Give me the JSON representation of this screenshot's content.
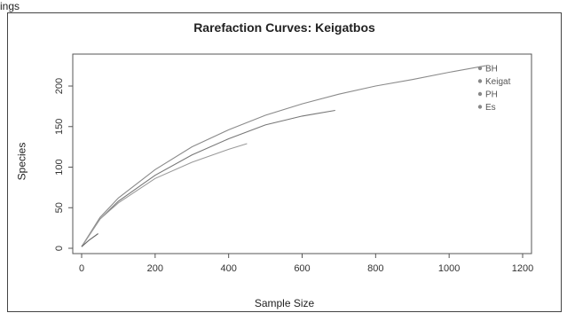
{
  "header_text": "ings",
  "chart_data": {
    "type": "line",
    "title": "Rarefaction Curves: Keigatbos",
    "xlabel": "Sample Size",
    "ylabel": "Species",
    "xlim": [
      0,
      1200
    ],
    "ylim": [
      0,
      235
    ],
    "x_ticks": [
      0,
      200,
      400,
      600,
      800,
      1000,
      1200
    ],
    "y_ticks": [
      0,
      50,
      100,
      150,
      200
    ],
    "grid": false,
    "legend_position": "top-right",
    "series": [
      {
        "name": "BH",
        "color": "#8a8a8a",
        "points": [
          [
            0,
            2
          ],
          [
            50,
            38
          ],
          [
            100,
            62
          ],
          [
            200,
            97
          ],
          [
            300,
            125
          ],
          [
            400,
            146
          ],
          [
            500,
            164
          ],
          [
            600,
            178
          ],
          [
            700,
            190
          ],
          [
            800,
            200
          ],
          [
            900,
            208
          ],
          [
            1000,
            217
          ],
          [
            1100,
            225
          ]
        ]
      },
      {
        "name": "Keigat",
        "color": "#777777",
        "points": [
          [
            0,
            2
          ],
          [
            50,
            36
          ],
          [
            100,
            58
          ],
          [
            200,
            90
          ],
          [
            300,
            115
          ],
          [
            400,
            135
          ],
          [
            500,
            152
          ],
          [
            600,
            163
          ],
          [
            690,
            170
          ]
        ]
      },
      {
        "name": "PH",
        "color": "#9a9a9a",
        "points": [
          [
            0,
            2
          ],
          [
            50,
            36
          ],
          [
            100,
            56
          ],
          [
            200,
            86
          ],
          [
            300,
            106
          ],
          [
            400,
            122
          ],
          [
            450,
            129
          ]
        ]
      },
      {
        "name": "Es",
        "color": "#666666",
        "points": [
          [
            0,
            2
          ],
          [
            20,
            10
          ],
          [
            45,
            18
          ]
        ]
      }
    ]
  }
}
